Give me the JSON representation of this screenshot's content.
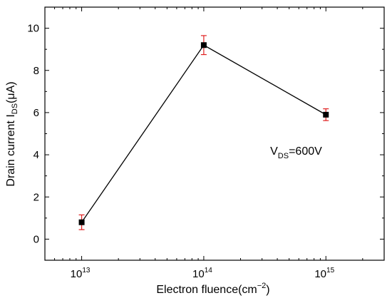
{
  "chart_data": {
    "type": "scatter",
    "xscale": "log",
    "xlim": [
      5000000000000.0,
      3000000000000000.0
    ],
    "ylim": [
      -1,
      11
    ],
    "xlabel_main": "Electron fluence(cm",
    "xlabel_sup": "−2",
    "xlabel_close": ")",
    "ylabel_main": "Drain current I",
    "ylabel_sub": "DS",
    "ylabel_tail": "(μA)",
    "annotation": {
      "main": "V",
      "sub": "DS",
      "tail": "=600V",
      "x": 350000000000000.0,
      "y": 4
    },
    "x_ticks": [
      {
        "value": 10000000000000.0,
        "base": "10",
        "exp": "13"
      },
      {
        "value": 100000000000000.0,
        "base": "10",
        "exp": "14"
      },
      {
        "value": 1000000000000000.0,
        "base": "10",
        "exp": "15"
      }
    ],
    "y_ticks": [
      0,
      2,
      4,
      6,
      8,
      10
    ],
    "series": [
      {
        "x": [
          10000000000000.0,
          100000000000000.0,
          1000000000000000.0
        ],
        "y": [
          0.8,
          9.2,
          5.9
        ],
        "err": [
          0.35,
          0.45,
          0.28
        ],
        "color": "#000000",
        "err_color": "#e02020"
      }
    ]
  }
}
